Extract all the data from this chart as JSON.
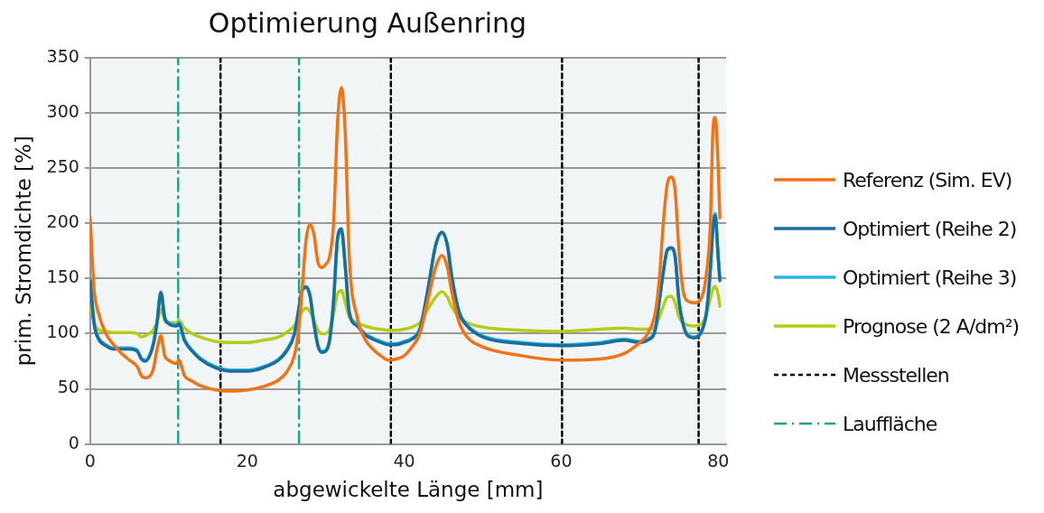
{
  "chart_data": {
    "type": "line",
    "title": "Optimierung Außenring",
    "xlabel": "abgewickelte Länge [mm]",
    "ylabel": "prim. Stromdichte [%]",
    "x": [
      0,
      0.5,
      1,
      2,
      3,
      4,
      5,
      6,
      6.5,
      7,
      8,
      8.5,
      9,
      9.5,
      10,
      11,
      11.3,
      12,
      13,
      14,
      16,
      18,
      20,
      22,
      24,
      25,
      26,
      26.5,
      27,
      27.5,
      28,
      28.5,
      29,
      29.5,
      30,
      30.5,
      31,
      31.5,
      32,
      32.5,
      33,
      34,
      35,
      36,
      37,
      38,
      39,
      40,
      41,
      42,
      43,
      44,
      44.8,
      45.5,
      46,
      47,
      48,
      50,
      55,
      60,
      65,
      68,
      70,
      71,
      72,
      72.5,
      73,
      73.5,
      74,
      74.5,
      75,
      75.5,
      76,
      77,
      78,
      78.5,
      79,
      79.3,
      79.6,
      80,
      80.2
    ],
    "series": [
      {
        "name": "Referenz (Sim. EV)",
        "color": "#f07318",
        "values": [
          205,
          140,
          120,
          100,
          90,
          82,
          76,
          70,
          62,
          60,
          67,
          85,
          98,
          80,
          76,
          73,
          76,
          62,
          57,
          53,
          49,
          48,
          49,
          52,
          58,
          65,
          80,
          100,
          140,
          185,
          199,
          190,
          165,
          160,
          163,
          170,
          200,
          290,
          323,
          280,
          170,
          115,
          95,
          86,
          80,
          76,
          77,
          80,
          88,
          100,
          130,
          160,
          171,
          160,
          140,
          110,
          97,
          88,
          80,
          76,
          77,
          82,
          92,
          100,
          120,
          150,
          200,
          235,
          242,
          230,
          175,
          140,
          130,
          128,
          135,
          155,
          200,
          280,
          296,
          250,
          205
        ]
      },
      {
        "name": "Optimiert (Reihe 2)",
        "color": "#1a6e9e",
        "values": [
          148,
          109,
          96,
          89,
          86,
          86,
          86,
          84,
          77,
          75,
          89,
          109,
          137,
          114,
          109,
          107,
          109,
          94,
          84,
          77,
          69,
          66,
          66,
          69,
          76,
          84,
          99,
          119,
          139,
          142,
          134,
          109,
          89,
          83,
          84,
          94,
          129,
          186,
          195,
          160,
          119,
          107,
          99,
          95,
          92,
          90,
          90,
          92,
          95,
          104,
          139,
          180,
          192,
          180,
          154,
          119,
          107,
          97,
          91,
          89,
          91,
          94,
          92,
          94,
          104,
          130,
          156,
          176,
          178,
          170,
          129,
          109,
          99,
          96,
          104,
          119,
          158,
          193,
          207,
          168,
          148
        ]
      },
      {
        "name": "Optimiert (Reihe 3)",
        "color": "#29b7e2",
        "values": [
          150,
          110,
          97,
          90,
          87,
          87,
          87,
          85,
          78,
          76,
          90,
          110,
          138,
          115,
          110,
          108,
          110,
          95,
          85,
          78,
          70,
          67,
          67,
          70,
          77,
          85,
          100,
          120,
          140,
          143,
          135,
          110,
          90,
          84,
          85,
          95,
          130,
          185,
          193,
          160,
          120,
          108,
          100,
          96,
          93,
          91,
          91,
          93,
          96,
          105,
          140,
          180,
          191,
          180,
          155,
          120,
          108,
          98,
          92,
          90,
          92,
          95,
          93,
          95,
          105,
          130,
          155,
          175,
          177,
          170,
          130,
          110,
          100,
          97,
          105,
          120,
          160,
          195,
          209,
          170,
          150
        ]
      },
      {
        "name": "Prognose (2 A/dm²)",
        "color": "#b5cc18",
        "values": [
          128,
          110,
          104,
          102,
          101,
          101,
          101,
          100,
          97,
          98,
          103,
          110,
          122,
          112,
          110,
          110,
          112,
          105,
          100,
          97,
          93,
          92,
          92,
          94,
          97,
          101,
          107,
          113,
          120,
          123,
          120,
          112,
          103,
          100,
          100,
          104,
          118,
          136,
          139,
          128,
          115,
          110,
          107,
          105,
          104,
          103,
          103,
          104,
          106,
          110,
          122,
          133,
          138,
          133,
          125,
          115,
          110,
          106,
          103,
          102,
          104,
          105,
          104,
          104,
          107,
          115,
          125,
          133,
          134,
          128,
          115,
          110,
          108,
          107,
          110,
          118,
          132,
          140,
          143,
          135,
          125
        ]
      },
      {
        "name": "Messstellen",
        "type": "line",
        "color": "#000000",
        "line_style": "dashed",
        "x": [
          16.6,
          16.6,
          38.3,
          38.3,
          60.1,
          60.1,
          77.5,
          77.5
        ],
        "values": [
          0,
          350,
          0,
          350,
          0,
          350,
          0,
          350
        ]
      },
      {
        "name": "Lauffläche",
        "type": "line",
        "color": "#1fa585",
        "line_style": "dashdot",
        "x": [
          11.2,
          11.2,
          26.6,
          26.6
        ],
        "values": [
          0,
          350,
          0,
          350
        ]
      }
    ],
    "xlim": [
      0,
      81
    ],
    "xticks": [
      0,
      20,
      40,
      60,
      80
    ],
    "ylim": [
      0,
      350
    ],
    "yticks": [
      0,
      50,
      100,
      150,
      200,
      250,
      300,
      350
    ],
    "grid": "y",
    "legend": "right",
    "marker": "none",
    "line_style": "solid"
  }
}
